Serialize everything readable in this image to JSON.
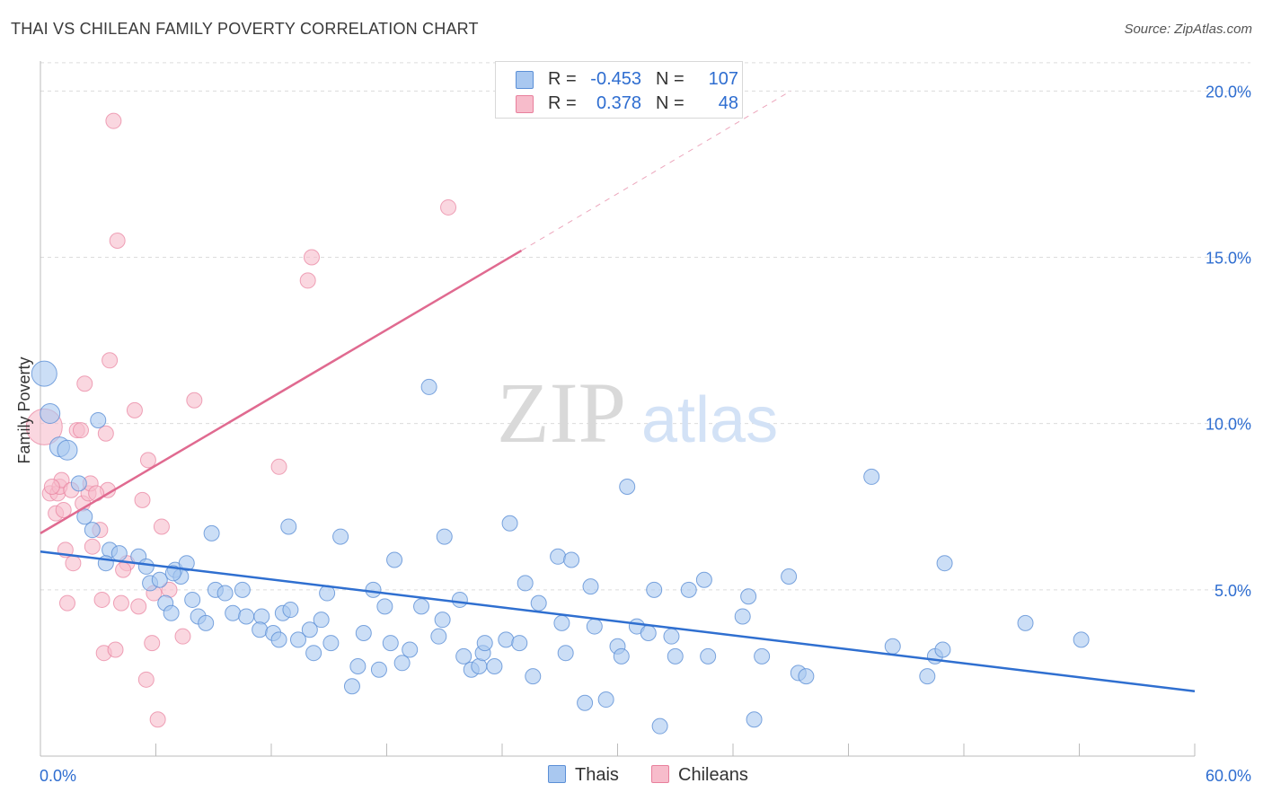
{
  "title": "THAI VS CHILEAN FAMILY POVERTY CORRELATION CHART",
  "source": "Source: ZipAtlas.com",
  "watermark": {
    "zip": "ZIP",
    "atlas": "atlas"
  },
  "legend": {
    "rows": [
      {
        "r_label": "R =",
        "r_value": "-0.453",
        "n_label": "N =",
        "n_value": "107",
        "color": "#a9c8f0",
        "border": "#5b8fd6"
      },
      {
        "r_label": "R =",
        "r_value": "0.378",
        "n_label": "N =",
        "n_value": "48",
        "color": "#f7bccb",
        "border": "#e87f9c"
      }
    ],
    "bottom": [
      "Thais",
      "Chileans"
    ]
  },
  "colors": {
    "thais_fill": "#a9c8f0",
    "thais_stroke": "#5b8fd6",
    "thais_line": "#2f6fd0",
    "chileans_fill": "#f7bccb",
    "chileans_stroke": "#e87f9c",
    "chileans_line": "#e06a90",
    "tick_label": "#2e6dd0",
    "grid": "#dcdcdc"
  },
  "chart_data": {
    "type": "scatter",
    "title": "THAI VS CHILEAN FAMILY POVERTY CORRELATION CHART",
    "xlabel": "",
    "ylabel": "Family Poverty",
    "xlim": [
      0,
      60
    ],
    "ylim": [
      0,
      20.9
    ],
    "x_tick_labels": [
      "0.0%",
      "60.0%"
    ],
    "y_ticks": [
      5,
      10,
      15,
      20
    ],
    "y_tick_labels": [
      "5.0%",
      "10.0%",
      "15.0%",
      "20.0%"
    ],
    "grid": "horizontal dashed",
    "legend_position": "top-center",
    "series": [
      {
        "name": "Thais",
        "r": -0.453,
        "n": 107,
        "trend": {
          "x0": 0,
          "y0": 6.15,
          "x1": 60,
          "y1": 1.95
        },
        "points": [
          [
            0.2,
            11.5
          ],
          [
            0.5,
            10.3
          ],
          [
            1.0,
            9.3
          ],
          [
            1.4,
            9.2
          ],
          [
            3.0,
            10.1
          ],
          [
            2.0,
            8.2
          ],
          [
            2.3,
            7.2
          ],
          [
            2.7,
            6.8
          ],
          [
            3.6,
            6.2
          ],
          [
            4.1,
            6.1
          ],
          [
            5.1,
            6.0
          ],
          [
            3.4,
            5.8
          ],
          [
            5.5,
            5.7
          ],
          [
            7.0,
            5.6
          ],
          [
            7.6,
            5.8
          ],
          [
            5.7,
            5.2
          ],
          [
            6.2,
            5.3
          ],
          [
            7.3,
            5.4
          ],
          [
            6.9,
            5.5
          ],
          [
            8.9,
            6.7
          ],
          [
            6.5,
            4.6
          ],
          [
            6.8,
            4.3
          ],
          [
            7.9,
            4.7
          ],
          [
            8.2,
            4.2
          ],
          [
            8.6,
            4.0
          ],
          [
            9.1,
            5.0
          ],
          [
            9.6,
            4.9
          ],
          [
            10.5,
            5.0
          ],
          [
            10.0,
            4.3
          ],
          [
            10.7,
            4.2
          ],
          [
            11.5,
            4.2
          ],
          [
            11.4,
            3.8
          ],
          [
            12.1,
            3.7
          ],
          [
            12.4,
            3.5
          ],
          [
            12.6,
            4.3
          ],
          [
            13.0,
            4.4
          ],
          [
            13.4,
            3.5
          ],
          [
            14.0,
            3.8
          ],
          [
            14.6,
            4.1
          ],
          [
            14.2,
            3.1
          ],
          [
            14.9,
            4.9
          ],
          [
            15.1,
            3.4
          ],
          [
            12.9,
            6.9
          ],
          [
            15.6,
            6.6
          ],
          [
            16.2,
            2.1
          ],
          [
            16.5,
            2.7
          ],
          [
            16.8,
            3.7
          ],
          [
            17.3,
            5.0
          ],
          [
            17.9,
            4.5
          ],
          [
            17.6,
            2.6
          ],
          [
            18.2,
            3.4
          ],
          [
            18.4,
            5.9
          ],
          [
            18.8,
            2.8
          ],
          [
            19.2,
            3.2
          ],
          [
            19.8,
            4.5
          ],
          [
            20.2,
            11.1
          ],
          [
            20.7,
            3.6
          ],
          [
            20.9,
            4.1
          ],
          [
            21.0,
            6.6
          ],
          [
            21.8,
            4.7
          ],
          [
            22.0,
            3.0
          ],
          [
            22.4,
            2.6
          ],
          [
            22.8,
            2.7
          ],
          [
            23.0,
            3.1
          ],
          [
            23.1,
            3.4
          ],
          [
            23.6,
            2.7
          ],
          [
            24.2,
            3.5
          ],
          [
            24.4,
            7.0
          ],
          [
            24.9,
            3.4
          ],
          [
            25.2,
            5.2
          ],
          [
            25.6,
            2.4
          ],
          [
            25.9,
            4.6
          ],
          [
            26.9,
            6.0
          ],
          [
            27.1,
            4.0
          ],
          [
            27.3,
            3.1
          ],
          [
            27.6,
            5.9
          ],
          [
            28.3,
            1.6
          ],
          [
            28.6,
            5.1
          ],
          [
            28.8,
            3.9
          ],
          [
            29.4,
            1.7
          ],
          [
            30.0,
            3.3
          ],
          [
            30.2,
            3.0
          ],
          [
            30.5,
            8.1
          ],
          [
            31.0,
            3.9
          ],
          [
            31.6,
            3.7
          ],
          [
            31.9,
            5.0
          ],
          [
            32.2,
            0.9
          ],
          [
            32.8,
            3.6
          ],
          [
            33.0,
            3.0
          ],
          [
            33.7,
            5.0
          ],
          [
            34.5,
            5.3
          ],
          [
            34.7,
            3.0
          ],
          [
            36.5,
            4.2
          ],
          [
            36.8,
            4.8
          ],
          [
            37.1,
            1.1
          ],
          [
            37.5,
            3.0
          ],
          [
            38.9,
            5.4
          ],
          [
            39.4,
            2.5
          ],
          [
            39.8,
            2.4
          ],
          [
            43.2,
            8.4
          ],
          [
            44.3,
            3.3
          ],
          [
            46.1,
            2.4
          ],
          [
            46.5,
            3.0
          ],
          [
            47.0,
            5.8
          ],
          [
            46.9,
            3.2
          ],
          [
            51.2,
            4.0
          ],
          [
            54.1,
            3.5
          ]
        ]
      },
      {
        "name": "Chileans",
        "r": 0.378,
        "n": 48,
        "trend": {
          "x0": 0,
          "y0": 6.7,
          "x1": 25.0,
          "y1": 15.2,
          "dashed_to": {
            "x": 39,
            "y": 20.0
          }
        },
        "points": [
          [
            0.2,
            9.9
          ],
          [
            0.5,
            7.9
          ],
          [
            0.9,
            7.9
          ],
          [
            0.8,
            7.3
          ],
          [
            1.0,
            8.1
          ],
          [
            1.1,
            8.3
          ],
          [
            1.3,
            6.2
          ],
          [
            1.4,
            4.6
          ],
          [
            1.6,
            8.0
          ],
          [
            1.7,
            5.8
          ],
          [
            1.9,
            9.8
          ],
          [
            2.1,
            9.8
          ],
          [
            2.2,
            7.6
          ],
          [
            2.3,
            11.2
          ],
          [
            2.5,
            7.9
          ],
          [
            2.6,
            8.2
          ],
          [
            2.7,
            6.3
          ],
          [
            3.1,
            6.8
          ],
          [
            3.2,
            4.7
          ],
          [
            3.4,
            9.7
          ],
          [
            3.3,
            3.1
          ],
          [
            3.5,
            8.0
          ],
          [
            3.6,
            11.9
          ],
          [
            3.8,
            19.1
          ],
          [
            3.9,
            3.2
          ],
          [
            4.0,
            15.5
          ],
          [
            4.2,
            4.6
          ],
          [
            4.5,
            5.8
          ],
          [
            4.9,
            10.4
          ],
          [
            5.1,
            4.5
          ],
          [
            5.3,
            7.7
          ],
          [
            5.5,
            2.3
          ],
          [
            5.6,
            8.9
          ],
          [
            5.8,
            3.4
          ],
          [
            6.1,
            1.1
          ],
          [
            6.3,
            6.9
          ],
          [
            6.7,
            5.0
          ],
          [
            7.4,
            3.6
          ],
          [
            8.0,
            10.7
          ],
          [
            12.4,
            8.7
          ],
          [
            13.9,
            14.3
          ],
          [
            14.1,
            15.0
          ],
          [
            21.2,
            16.5
          ],
          [
            0.6,
            8.1
          ],
          [
            1.2,
            7.4
          ],
          [
            2.9,
            7.9
          ],
          [
            4.3,
            5.6
          ],
          [
            5.9,
            4.9
          ]
        ]
      }
    ]
  }
}
